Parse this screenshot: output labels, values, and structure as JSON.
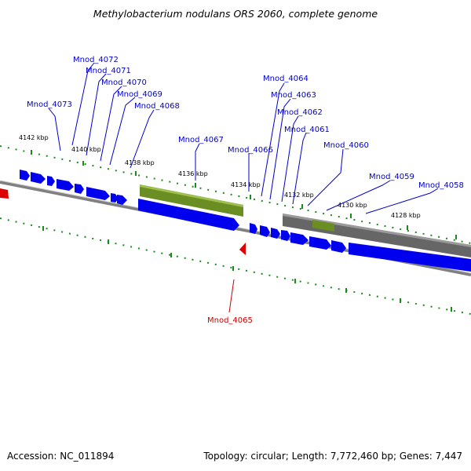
{
  "title": "Methylobacterium nodulans ORS 2060, complete genome",
  "accession": "Accession: NC_011894",
  "summary": "Topology: circular; Length: 7,772,460 bp; Genes: 7,447",
  "colors": {
    "forward_gene": "#0000ee",
    "reverse_gene": "#cc0000",
    "rna_feature": "#6b8e23",
    "pseudo_feature": "#666666",
    "backbone": "#808080",
    "tick": "#1a8a1a",
    "label": "#0000cc",
    "label_red": "#cc0000"
  },
  "kbp_ticks": [
    "4142 kbp",
    "4140 kbp",
    "4138 kbp",
    "4136 kbp",
    "4134 kbp",
    "4132 kbp",
    "4130 kbp",
    "4128 kbp"
  ],
  "gene_labels": [
    "Mnod_4072",
    "Mnod_4071",
    "Mnod_4070",
    "Mnod_4069",
    "Mnod_4068",
    "Mnod_4073",
    "Mnod_4067",
    "Mnod_4066",
    "Mnod_4064",
    "Mnod_4063",
    "Mnod_4062",
    "Mnod_4061",
    "Mnod_4060",
    "Mnod_4059",
    "Mnod_4058"
  ],
  "highlight_gene": "Mnod_4065"
}
